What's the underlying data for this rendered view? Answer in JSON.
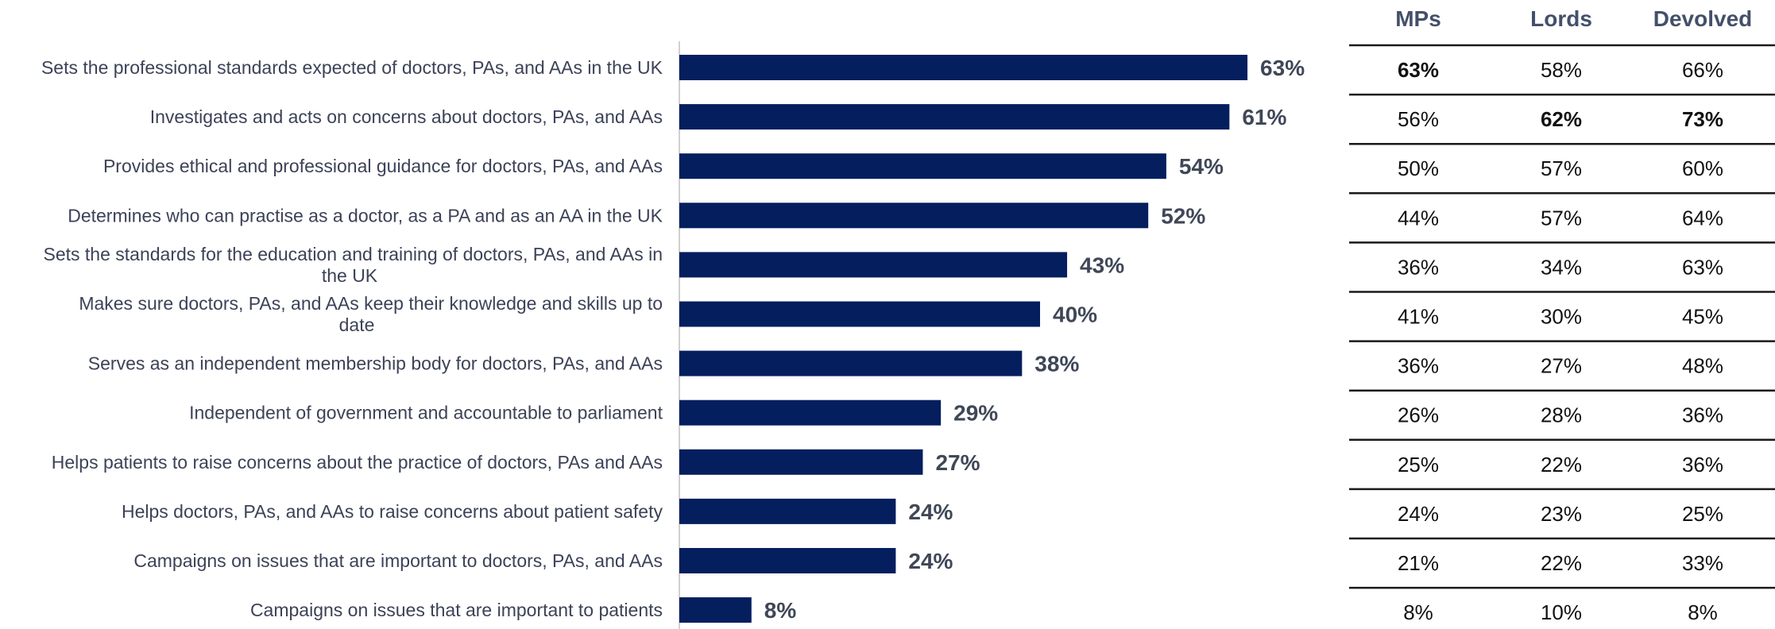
{
  "colors": {
    "bar": "#041e5e",
    "axis_line": "#d0d0d0",
    "table_rule": "#1a1a1a"
  },
  "chart_data": {
    "type": "bar",
    "orientation": "horizontal",
    "categories": [
      "Sets the professional standards expected of doctors, PAs, and AAs in the UK",
      "Investigates and acts on concerns about doctors, PAs, and AAs",
      "Provides ethical and professional guidance for doctors, PAs, and AAs",
      "Determines who can practise as a doctor, as a PA and as an AA in the UK",
      "Sets the standards for the education and training of doctors, PAs, and AAs in the UK",
      "Makes sure doctors, PAs, and AAs keep their knowledge and skills up to date",
      "Serves as an independent membership body for doctors, PAs, and AAs",
      "Independent of government and accountable to parliament",
      "Helps patients to raise concerns about the practice of doctors, PAs and AAs",
      "Helps doctors, PAs, and AAs to raise concerns about patient safety",
      "Campaigns on issues that are important to doctors, PAs, and AAs",
      "Campaigns on issues that are important to patients"
    ],
    "category_lines": [
      [
        "Sets the professional standards expected of doctors, PAs, and AAs in the UK"
      ],
      [
        "Investigates and acts on concerns about doctors, PAs, and AAs"
      ],
      [
        "Provides ethical and professional guidance for doctors, PAs, and AAs"
      ],
      [
        "Determines who can practise as a doctor, as a PA and as an AA in the UK"
      ],
      [
        "Sets the standards for the education and training of doctors, PAs, and AAs in",
        "the UK"
      ],
      [
        "Makes sure doctors, PAs, and AAs keep their knowledge and skills up to",
        "date"
      ],
      [
        "Serves as an independent membership body for doctors, PAs, and AAs"
      ],
      [
        "Independent of government and accountable to parliament"
      ],
      [
        "Helps patients to raise concerns about the practice of doctors, PAs and AAs"
      ],
      [
        "Helps doctors, PAs, and AAs to raise concerns about patient safety"
      ],
      [
        "Campaigns on issues that are important to doctors, PAs, and AAs"
      ],
      [
        "Campaigns on issues that are important to patients"
      ]
    ],
    "values": [
      63,
      61,
      54,
      52,
      43,
      40,
      38,
      29,
      27,
      24,
      24,
      8
    ],
    "value_labels": [
      "63%",
      "61%",
      "54%",
      "52%",
      "43%",
      "40%",
      "38%",
      "29%",
      "27%",
      "24%",
      "24%",
      "8%"
    ],
    "xlim": [
      0,
      100
    ],
    "grid": false,
    "legend": "none"
  },
  "table": {
    "columns": [
      "MPs",
      "Lords",
      "Devolved"
    ],
    "rows": [
      [
        {
          "text": "63%",
          "bold": true
        },
        {
          "text": "58%",
          "bold": false
        },
        {
          "text": "66%",
          "bold": false
        }
      ],
      [
        {
          "text": "56%",
          "bold": false
        },
        {
          "text": "62%",
          "bold": true
        },
        {
          "text": "73%",
          "bold": true
        }
      ],
      [
        {
          "text": "50%",
          "bold": false
        },
        {
          "text": "57%",
          "bold": false
        },
        {
          "text": "60%",
          "bold": false
        }
      ],
      [
        {
          "text": "44%",
          "bold": false
        },
        {
          "text": "57%",
          "bold": false
        },
        {
          "text": "64%",
          "bold": false
        }
      ],
      [
        {
          "text": "36%",
          "bold": false
        },
        {
          "text": "34%",
          "bold": false
        },
        {
          "text": "63%",
          "bold": false
        }
      ],
      [
        {
          "text": "41%",
          "bold": false
        },
        {
          "text": "30%",
          "bold": false
        },
        {
          "text": "45%",
          "bold": false
        }
      ],
      [
        {
          "text": "36%",
          "bold": false
        },
        {
          "text": "27%",
          "bold": false
        },
        {
          "text": "48%",
          "bold": false
        }
      ],
      [
        {
          "text": "26%",
          "bold": false
        },
        {
          "text": "28%",
          "bold": false
        },
        {
          "text": "36%",
          "bold": false
        }
      ],
      [
        {
          "text": "25%",
          "bold": false
        },
        {
          "text": "22%",
          "bold": false
        },
        {
          "text": "36%",
          "bold": false
        }
      ],
      [
        {
          "text": "24%",
          "bold": false
        },
        {
          "text": "23%",
          "bold": false
        },
        {
          "text": "25%",
          "bold": false
        }
      ],
      [
        {
          "text": "21%",
          "bold": false
        },
        {
          "text": "22%",
          "bold": false
        },
        {
          "text": "33%",
          "bold": false
        }
      ],
      [
        {
          "text": "8%",
          "bold": false
        },
        {
          "text": "10%",
          "bold": false
        },
        {
          "text": "8%",
          "bold": false
        }
      ]
    ]
  }
}
